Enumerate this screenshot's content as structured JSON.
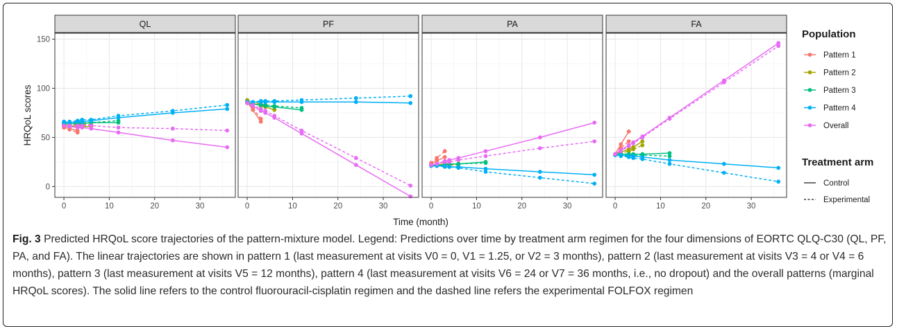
{
  "caption": {
    "label": "Fig. 3",
    "text": " Predicted HRQoL score trajectories of the pattern-mixture model. Legend: Predictions over time by treatment arm regimen for the four dimensions of EORTC QLQ-C30 (QL, PF, PA, and FA). The linear trajectories are shown in pattern 1 (last measurement at visits V0 = 0, V1 = 1.25, or V2 = 3 months), pattern 2 (last measurement at visits V3 = 4 or V4 = 6 months), pattern 3 (last measurement at visits V5 = 12 months), pattern 4 (last measurement at visits V6 = 24 or V7 = 36 months, i.e., no dropout) and the overall patterns (marginal HRQoL scores). The solid line refers to the control fluorouracil-cisplatin regimen and the dashed line refers the experimental FOLFOX regimen"
  },
  "chart_data": {
    "type": "line",
    "xlabel": "Time (month)",
    "ylabel": "HRQoL scores",
    "xlim": [
      -2,
      37.8
    ],
    "ylim": [
      -11,
      156
    ],
    "xticks": [
      0,
      10,
      20,
      30
    ],
    "yticks": [
      0,
      50,
      100,
      150
    ],
    "grid": true,
    "colors": {
      "Pattern 1": "#F8766D",
      "Pattern 2": "#A3A500",
      "Pattern 3": "#00BF7D",
      "Pattern 4": "#00B0F6",
      "Overall": "#E76BF3"
    },
    "legend": {
      "position": "right",
      "population_title": "Population",
      "population_items": [
        "Pattern 1",
        "Pattern 2",
        "Pattern 3",
        "Pattern 4",
        "Overall"
      ],
      "arm_title": "Treatment arm",
      "arm_items": [
        {
          "name": "Control",
          "style": "solid"
        },
        {
          "name": "Experimental",
          "style": "dashed"
        }
      ]
    },
    "panels": [
      {
        "name": "QL",
        "series": [
          {
            "population": "Pattern 1",
            "arm": "Control",
            "x": [
              0,
              1.25,
              3
            ],
            "y": [
              61,
              59,
              57
            ]
          },
          {
            "population": "Pattern 1",
            "arm": "Experimental",
            "x": [
              0,
              1.25,
              3
            ],
            "y": [
              60,
              58,
              55
            ]
          },
          {
            "population": "Pattern 2",
            "arm": "Control",
            "x": [
              0,
              1.25,
              3,
              4,
              6
            ],
            "y": [
              62,
              62,
              61,
              61,
              61
            ]
          },
          {
            "population": "Pattern 2",
            "arm": "Experimental",
            "x": [
              0,
              1.25,
              3,
              4,
              6
            ],
            "y": [
              63,
              63,
              63,
              63,
              63
            ]
          },
          {
            "population": "Pattern 3",
            "arm": "Control",
            "x": [
              0,
              1.25,
              3,
              4,
              6,
              12
            ],
            "y": [
              64,
              64,
              64,
              64,
              65,
              65
            ]
          },
          {
            "population": "Pattern 3",
            "arm": "Experimental",
            "x": [
              0,
              1.25,
              3,
              4,
              6,
              12
            ],
            "y": [
              64,
              64,
              65,
              65,
              65,
              67
            ]
          },
          {
            "population": "Pattern 4",
            "arm": "Control",
            "x": [
              0,
              1.25,
              3,
              4,
              6,
              12,
              24,
              36
            ],
            "y": [
              65,
              65,
              66,
              66,
              67,
              70,
              75,
              79
            ]
          },
          {
            "population": "Pattern 4",
            "arm": "Experimental",
            "x": [
              0,
              1.25,
              3,
              4,
              6,
              12,
              24,
              36
            ],
            "y": [
              66,
              66,
              67,
              68,
              68,
              72,
              77,
              83
            ]
          },
          {
            "population": "Overall",
            "arm": "Control",
            "x": [
              0,
              1.25,
              3,
              4,
              6,
              12,
              24,
              36
            ],
            "y": [
              62,
              61,
              60,
              60,
              59,
              55,
              47,
              40
            ]
          },
          {
            "population": "Overall",
            "arm": "Experimental",
            "x": [
              0,
              1.25,
              3,
              4,
              6,
              12,
              24,
              36
            ],
            "y": [
              62,
              62,
              62,
              62,
              62,
              60,
              59,
              57
            ]
          }
        ]
      },
      {
        "name": "PF",
        "series": [
          {
            "population": "Pattern 1",
            "arm": "Control",
            "x": [
              0,
              1.25,
              3
            ],
            "y": [
              86,
              78,
              66
            ]
          },
          {
            "population": "Pattern 1",
            "arm": "Experimental",
            "x": [
              0,
              1.25,
              3
            ],
            "y": [
              87,
              80,
              69
            ]
          },
          {
            "population": "Pattern 2",
            "arm": "Control",
            "x": [
              0,
              1.25,
              3,
              4,
              6
            ],
            "y": [
              87,
              85,
              82,
              81,
              78
            ]
          },
          {
            "population": "Pattern 2",
            "arm": "Experimental",
            "x": [
              0,
              1.25,
              3,
              4,
              6
            ],
            "y": [
              88,
              86,
              84,
              83,
              81
            ]
          },
          {
            "population": "Pattern 3",
            "arm": "Control",
            "x": [
              0,
              1.25,
              3,
              4,
              6,
              12
            ],
            "y": [
              85,
              84,
              83,
              82,
              81,
              78
            ]
          },
          {
            "population": "Pattern 3",
            "arm": "Experimental",
            "x": [
              0,
              1.25,
              3,
              4,
              6,
              12
            ],
            "y": [
              85,
              84,
              83,
              83,
              82,
              80
            ]
          },
          {
            "population": "Pattern 4",
            "arm": "Control",
            "x": [
              0,
              1.25,
              3,
              4,
              6,
              12,
              24,
              36
            ],
            "y": [
              86,
              86,
              86,
              86,
              86,
              86,
              86,
              85
            ]
          },
          {
            "population": "Pattern 4",
            "arm": "Experimental",
            "x": [
              0,
              1.25,
              3,
              4,
              6,
              12,
              24,
              36
            ],
            "y": [
              86,
              86,
              87,
              87,
              87,
              88,
              90,
              92
            ]
          },
          {
            "population": "Overall",
            "arm": "Control",
            "x": [
              0,
              1.25,
              3,
              4,
              6,
              12,
              24,
              36
            ],
            "y": [
              85,
              82,
              77,
              75,
              70,
              54,
              22,
              -10
            ]
          },
          {
            "population": "Overall",
            "arm": "Experimental",
            "x": [
              0,
              1.25,
              3,
              4,
              6,
              12,
              24,
              36
            ],
            "y": [
              85,
              83,
              79,
              77,
              72,
              57,
              29,
              1
            ]
          }
        ]
      },
      {
        "name": "PA",
        "series": [
          {
            "population": "Pattern 1",
            "arm": "Control",
            "x": [
              0,
              1.25,
              3
            ],
            "y": [
              23,
              26,
              30
            ]
          },
          {
            "population": "Pattern 1",
            "arm": "Experimental",
            "x": [
              0,
              1.25,
              3
            ],
            "y": [
              24,
              29,
              36
            ]
          },
          {
            "population": "Pattern 2",
            "arm": "Control",
            "x": [
              0,
              1.25,
              3,
              4,
              6
            ],
            "y": [
              22,
              22,
              23,
              23,
              23
            ]
          },
          {
            "population": "Pattern 2",
            "arm": "Experimental",
            "x": [
              0,
              1.25,
              3,
              4,
              6
            ],
            "y": [
              22,
              22,
              22,
              22,
              22
            ]
          },
          {
            "population": "Pattern 3",
            "arm": "Control",
            "x": [
              0,
              1.25,
              3,
              4,
              6,
              12
            ],
            "y": [
              22,
              22,
              22,
              23,
              23,
              25
            ]
          },
          {
            "population": "Pattern 3",
            "arm": "Experimental",
            "x": [
              0,
              1.25,
              3,
              4,
              6,
              12
            ],
            "y": [
              22,
              22,
              22,
              23,
              23,
              24
            ]
          },
          {
            "population": "Pattern 4",
            "arm": "Control",
            "x": [
              0,
              1.25,
              3,
              4,
              6,
              12,
              24,
              36
            ],
            "y": [
              21,
              21,
              21,
              20,
              20,
              18,
              15,
              12
            ]
          },
          {
            "population": "Pattern 4",
            "arm": "Experimental",
            "x": [
              0,
              1.25,
              3,
              4,
              6,
              12,
              24,
              36
            ],
            "y": [
              21,
              21,
              20,
              20,
              19,
              15,
              9,
              3
            ]
          },
          {
            "population": "Overall",
            "arm": "Control",
            "x": [
              0,
              1.25,
              3,
              4,
              6,
              12,
              24,
              36
            ],
            "y": [
              22,
              23,
              26,
              27,
              29,
              36,
              50,
              65
            ]
          },
          {
            "population": "Overall",
            "arm": "Experimental",
            "x": [
              0,
              1.25,
              3,
              4,
              6,
              12,
              24,
              36
            ],
            "y": [
              22,
              23,
              25,
              25,
              27,
              31,
              39,
              46
            ]
          }
        ]
      },
      {
        "name": "FA",
        "series": [
          {
            "population": "Pattern 1",
            "arm": "Control",
            "x": [
              0,
              1.25,
              3
            ],
            "y": [
              33,
              43,
              56
            ]
          },
          {
            "population": "Pattern 1",
            "arm": "Experimental",
            "x": [
              0,
              1.25,
              3
            ],
            "y": [
              33,
              39,
              46
            ]
          },
          {
            "population": "Pattern 2",
            "arm": "Control",
            "x": [
              0,
              1.25,
              3,
              4,
              6
            ],
            "y": [
              33,
              35,
              38,
              40,
              46
            ]
          },
          {
            "population": "Pattern 2",
            "arm": "Experimental",
            "x": [
              0,
              1.25,
              3,
              4,
              6
            ],
            "y": [
              33,
              34,
              36,
              38,
              42
            ]
          },
          {
            "population": "Pattern 3",
            "arm": "Control",
            "x": [
              0,
              1.25,
              3,
              4,
              6,
              12
            ],
            "y": [
              33,
              33,
              33,
              33,
              33,
              34
            ]
          },
          {
            "population": "Pattern 3",
            "arm": "Experimental",
            "x": [
              0,
              1.25,
              3,
              4,
              6,
              12
            ],
            "y": [
              32,
              32,
              32,
              32,
              32,
              31
            ]
          },
          {
            "population": "Pattern 4",
            "arm": "Control",
            "x": [
              0,
              1.25,
              3,
              4,
              6,
              12,
              24,
              36
            ],
            "y": [
              32,
              32,
              31,
              31,
              30,
              27,
              23,
              19
            ]
          },
          {
            "population": "Pattern 4",
            "arm": "Experimental",
            "x": [
              0,
              1.25,
              3,
              4,
              6,
              12,
              24,
              36
            ],
            "y": [
              32,
              31,
              30,
              29,
              28,
              23,
              14,
              5
            ]
          },
          {
            "population": "Overall",
            "arm": "Control",
            "x": [
              0,
              1.25,
              3,
              4,
              6,
              12,
              24,
              36
            ],
            "y": [
              33,
              37,
              42,
              45,
              51,
              70,
              108,
              146
            ]
          },
          {
            "population": "Overall",
            "arm": "Experimental",
            "x": [
              0,
              1.25,
              3,
              4,
              6,
              12,
              24,
              36
            ],
            "y": [
              33,
              36,
              41,
              44,
              50,
              69,
              106,
              143
            ]
          }
        ]
      }
    ]
  }
}
